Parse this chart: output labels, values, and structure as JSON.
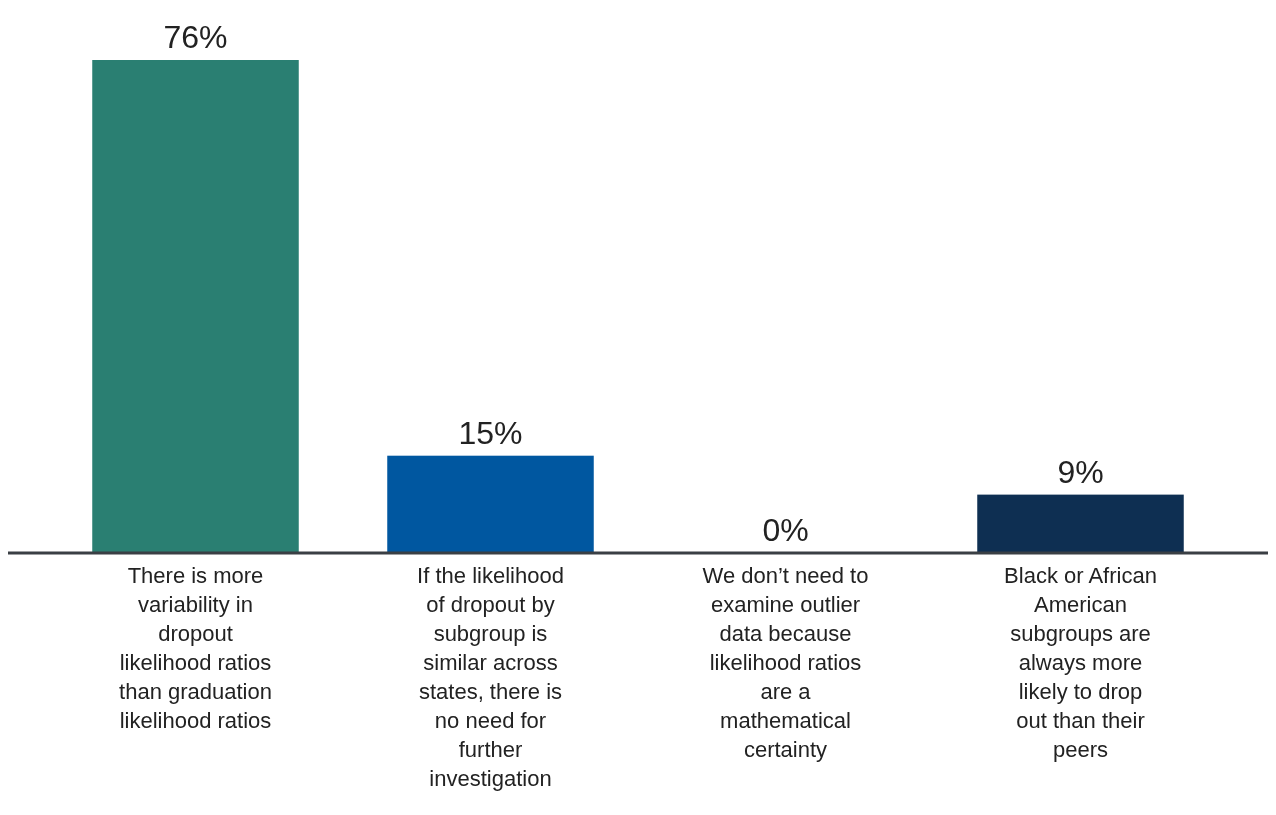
{
  "chart_data": {
    "type": "bar",
    "categories": [
      "There is more variability in dropout likelihood ratios than graduation likelihood ratios",
      "If the likelihood of dropout by subgroup is similar across states, there is no need for further investigation",
      "We don’t need to examine outlier data because likelihood ratios are a mathematical certainty",
      "Black or African American subgroups are always more likely to drop out than their peers"
    ],
    "values": [
      76,
      15,
      0,
      9
    ],
    "colors": [
      "#2a7f72",
      "#0057a0",
      "#7f7f7f",
      "#0e2f52"
    ],
    "value_labels": [
      "76%",
      "15%",
      "0%",
      "9%"
    ]
  }
}
